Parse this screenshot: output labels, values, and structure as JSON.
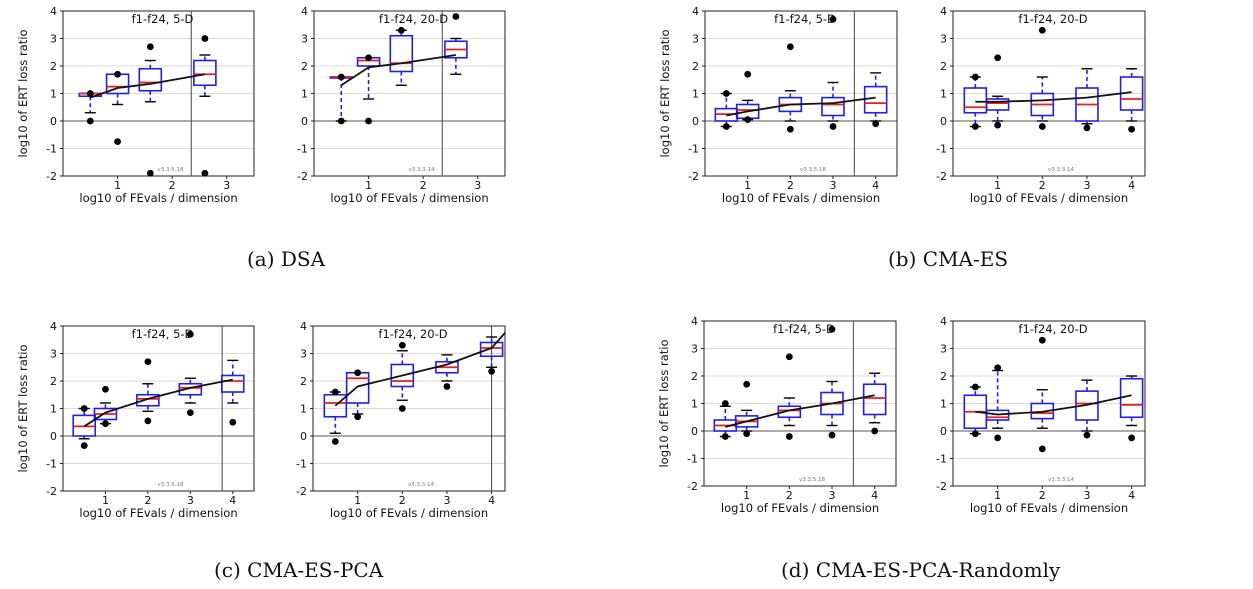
{
  "captions": [
    {
      "label": "(a) DSA"
    },
    {
      "label": "(b) CMA-ES"
    },
    {
      "label": "(c) CMA-ES-PCA"
    },
    {
      "label": "(d) CMA-ES-PCA-Randomly"
    }
  ],
  "colors": {
    "box": "#1f1fe6",
    "median": "#e61f1f",
    "mean_line": "#111111",
    "outlier": "#000000",
    "grid": "#d9d9d9"
  },
  "chart_data": [
    {
      "type": "box",
      "panel": "a",
      "title": "f1-f24, 5-D",
      "xlabel": "log10 of FEvals / dimension",
      "ylabel": "log10 of ERT loss ratio",
      "version": "v3.3.5.18",
      "xlim": [
        0,
        3.5
      ],
      "ylim": [
        -2,
        4
      ],
      "xticks": [
        1,
        2,
        3
      ],
      "yticks": [
        -2,
        -1,
        0,
        1,
        2,
        3,
        4
      ],
      "vline": 2.35,
      "boxes": [
        {
          "x": 0.5,
          "q1": 0.9,
          "median": 1.0,
          "q3": 1.0,
          "wlo": 0.3,
          "whi": 1.0,
          "outliers": [
            0,
            1.0
          ]
        },
        {
          "x": 1.0,
          "q1": 1.0,
          "median": 1.25,
          "q3": 1.7,
          "wlo": 0.6,
          "whi": 1.7,
          "outliers": [
            -0.75,
            1.7
          ]
        },
        {
          "x": 1.6,
          "q1": 1.1,
          "median": 1.4,
          "q3": 1.9,
          "wlo": 0.7,
          "whi": 2.2,
          "outliers": [
            2.7,
            -1.9
          ]
        },
        {
          "x": 2.6,
          "q1": 1.3,
          "median": 1.7,
          "q3": 2.2,
          "wlo": 0.9,
          "whi": 2.4,
          "outliers": [
            3.0,
            -1.9
          ]
        }
      ],
      "mean": {
        "x": [
          0.5,
          1.0,
          1.6,
          2.6
        ],
        "y": [
          0.85,
          1.2,
          1.35,
          1.7
        ]
      }
    },
    {
      "type": "box",
      "panel": "a",
      "title": "f1-f24, 20-D",
      "xlabel": "log10 of FEvals / dimension",
      "ylabel": "",
      "version": "v3.3.3.14",
      "xlim": [
        0,
        3.5
      ],
      "ylim": [
        -2,
        4
      ],
      "xticks": [
        1,
        2,
        3
      ],
      "yticks": [
        -2,
        -1,
        0,
        1,
        2,
        3,
        4
      ],
      "vline": 2.35,
      "boxes": [
        {
          "x": 0.5,
          "q1": 1.6,
          "median": 1.6,
          "q3": 1.6,
          "wlo": 0.0,
          "whi": 1.6,
          "outliers": [
            0,
            1.6
          ]
        },
        {
          "x": 1.0,
          "q1": 2.0,
          "median": 2.2,
          "q3": 2.3,
          "wlo": 0.8,
          "whi": 2.3,
          "outliers": [
            0,
            2.3
          ]
        },
        {
          "x": 1.6,
          "q1": 1.8,
          "median": 2.1,
          "q3": 3.1,
          "wlo": 1.3,
          "whi": 3.3,
          "outliers": [
            3.3
          ]
        },
        {
          "x": 2.6,
          "q1": 2.3,
          "median": 2.6,
          "q3": 2.9,
          "wlo": 1.7,
          "whi": 3.0,
          "outliers": [
            3.8
          ]
        }
      ],
      "mean": {
        "x": [
          0.5,
          1.0,
          1.6,
          2.6
        ],
        "y": [
          1.3,
          1.95,
          2.1,
          2.4
        ]
      }
    },
    {
      "type": "box",
      "panel": "b",
      "title": "f1-f24, 5-D",
      "xlabel": "log10 of FEvals / dimension",
      "ylabel": "log10 of ERT loss ratio",
      "version": "v3.3.5.18",
      "xlim": [
        0,
        4.5
      ],
      "ylim": [
        -2,
        4
      ],
      "xticks": [
        1,
        2,
        3,
        4
      ],
      "yticks": [
        -2,
        -1,
        0,
        1,
        2,
        3,
        4
      ],
      "vline": 3.5,
      "boxes": [
        {
          "x": 0.5,
          "q1": 0.0,
          "median": 0.25,
          "q3": 0.45,
          "wlo": -0.2,
          "whi": 1.0,
          "outliers": [
            1.0,
            -0.2
          ]
        },
        {
          "x": 1.0,
          "q1": 0.1,
          "median": 0.4,
          "q3": 0.6,
          "wlo": 0.05,
          "whi": 0.75,
          "outliers": [
            1.7,
            0.05
          ]
        },
        {
          "x": 2.0,
          "q1": 0.35,
          "median": 0.6,
          "q3": 0.85,
          "wlo": 0.0,
          "whi": 1.1,
          "outliers": [
            2.7,
            -0.3
          ]
        },
        {
          "x": 3.0,
          "q1": 0.2,
          "median": 0.6,
          "q3": 0.85,
          "wlo": 0.0,
          "whi": 1.4,
          "outliers": [
            3.7,
            -0.2
          ]
        },
        {
          "x": 4.0,
          "q1": 0.3,
          "median": 0.65,
          "q3": 1.25,
          "wlo": 0.0,
          "whi": 1.75,
          "outliers": [
            -0.1
          ]
        }
      ],
      "mean": {
        "x": [
          0.5,
          1.0,
          2.0,
          3.0,
          4.0
        ],
        "y": [
          0.2,
          0.35,
          0.6,
          0.65,
          0.85
        ]
      }
    },
    {
      "type": "box",
      "panel": "b",
      "title": "f1-f24, 20-D",
      "xlabel": "log10 of FEvals / dimension",
      "ylabel": "",
      "version": "v3.3.3.14",
      "xlim": [
        0,
        4.3
      ],
      "ylim": [
        -2,
        4
      ],
      "xticks": [
        1,
        2,
        3,
        4
      ],
      "yticks": [
        -2,
        -1,
        0,
        1,
        2,
        3,
        4
      ],
      "vline": 4.3,
      "boxes": [
        {
          "x": 0.5,
          "q1": 0.3,
          "median": 0.5,
          "q3": 1.2,
          "wlo": -0.2,
          "whi": 1.6,
          "outliers": [
            1.6,
            -0.2
          ]
        },
        {
          "x": 1.0,
          "q1": 0.4,
          "median": 0.65,
          "q3": 0.8,
          "wlo": 0.0,
          "whi": 0.9,
          "outliers": [
            2.3,
            -0.15
          ]
        },
        {
          "x": 2.0,
          "q1": 0.2,
          "median": 0.6,
          "q3": 1.0,
          "wlo": 0.0,
          "whi": 1.6,
          "outliers": [
            3.3,
            -0.2
          ]
        },
        {
          "x": 3.0,
          "q1": 0.0,
          "median": 0.6,
          "q3": 1.2,
          "wlo": -0.1,
          "whi": 1.9,
          "outliers": [
            -0.25
          ]
        },
        {
          "x": 4.0,
          "q1": 0.4,
          "median": 0.8,
          "q3": 1.6,
          "wlo": 0.0,
          "whi": 1.9,
          "outliers": [
            -0.3
          ]
        }
      ],
      "mean": {
        "x": [
          0.5,
          1.0,
          2.0,
          3.0,
          4.0
        ],
        "y": [
          0.7,
          0.7,
          0.75,
          0.85,
          1.05
        ]
      }
    },
    {
      "type": "box",
      "panel": "c",
      "title": "f1-f24, 5-D",
      "xlabel": "log10 of FEvals / dimension",
      "ylabel": "log10 of ERT loss ratio",
      "version": "v3.3.5.18",
      "xlim": [
        0,
        4.5
      ],
      "ylim": [
        -2,
        4
      ],
      "xticks": [
        1,
        2,
        3,
        4
      ],
      "yticks": [
        -2,
        -1,
        0,
        1,
        2,
        3,
        4
      ],
      "vline": 3.75,
      "boxes": [
        {
          "x": 0.5,
          "q1": 0.0,
          "median": 0.35,
          "q3": 0.75,
          "wlo": -0.1,
          "whi": 1.0,
          "outliers": [
            1.0,
            -0.35
          ]
        },
        {
          "x": 1.0,
          "q1": 0.6,
          "median": 0.8,
          "q3": 1.0,
          "wlo": 0.45,
          "whi": 1.2,
          "outliers": [
            1.7,
            0.45
          ]
        },
        {
          "x": 2.0,
          "q1": 1.1,
          "median": 1.35,
          "q3": 1.5,
          "wlo": 0.9,
          "whi": 1.9,
          "outliers": [
            2.7,
            0.55
          ]
        },
        {
          "x": 3.0,
          "q1": 1.5,
          "median": 1.75,
          "q3": 1.9,
          "wlo": 1.2,
          "whi": 2.1,
          "outliers": [
            3.7,
            0.85
          ]
        },
        {
          "x": 4.0,
          "q1": 1.6,
          "median": 2.0,
          "q3": 2.2,
          "wlo": 1.2,
          "whi": 2.75,
          "outliers": [
            0.5
          ]
        }
      ],
      "mean": {
        "x": [
          0.5,
          1.0,
          2.0,
          3.0,
          4.0
        ],
        "y": [
          0.35,
          0.85,
          1.35,
          1.75,
          2.05
        ]
      }
    },
    {
      "type": "box",
      "panel": "c",
      "title": "f1-f24, 20-D",
      "xlabel": "log10 of FEvals / dimension",
      "ylabel": "",
      "version": "v3.3.3.14",
      "xlim": [
        0,
        4.3
      ],
      "ylim": [
        -2,
        4
      ],
      "xticks": [
        1,
        2,
        3,
        4
      ],
      "yticks": [
        -2,
        -1,
        0,
        1,
        2,
        3,
        4
      ],
      "vline": 4.0,
      "boxes": [
        {
          "x": 0.5,
          "q1": 0.7,
          "median": 1.2,
          "q3": 1.5,
          "wlo": 0.1,
          "whi": 1.6,
          "outliers": [
            1.6,
            -0.2
          ]
        },
        {
          "x": 1.0,
          "q1": 1.2,
          "median": 2.1,
          "q3": 2.3,
          "wlo": 0.8,
          "whi": 2.3,
          "outliers": [
            2.3,
            0.7
          ]
        },
        {
          "x": 2.0,
          "q1": 1.8,
          "median": 2.0,
          "q3": 2.6,
          "wlo": 1.3,
          "whi": 3.1,
          "outliers": [
            3.3,
            1.0
          ]
        },
        {
          "x": 3.0,
          "q1": 2.3,
          "median": 2.5,
          "q3": 2.7,
          "wlo": 2.0,
          "whi": 2.95,
          "outliers": [
            1.8
          ]
        },
        {
          "x": 4.0,
          "q1": 2.9,
          "median": 3.2,
          "q3": 3.4,
          "wlo": 2.5,
          "whi": 3.6,
          "outliers": [
            2.35
          ]
        }
      ],
      "mean": {
        "x": [
          0.5,
          1.0,
          2.0,
          3.0,
          4.0,
          4.3
        ],
        "y": [
          1.1,
          1.8,
          2.2,
          2.6,
          3.2,
          3.75
        ]
      }
    },
    {
      "type": "box",
      "panel": "d",
      "title": "f1-f24, 5-D",
      "xlabel": "log10 of FEvals / dimension",
      "ylabel": "log10 of ERT loss ratio",
      "version": "v3.3.5.18",
      "xlim": [
        0,
        4.5
      ],
      "ylim": [
        -2,
        4
      ],
      "xticks": [
        1,
        2,
        3,
        4
      ],
      "yticks": [
        -2,
        -1,
        0,
        1,
        2,
        3,
        4
      ],
      "vline": 3.5,
      "boxes": [
        {
          "x": 0.5,
          "q1": 0.0,
          "median": 0.2,
          "q3": 0.4,
          "wlo": -0.2,
          "whi": 0.9,
          "outliers": [
            1.0,
            -0.2
          ]
        },
        {
          "x": 1.0,
          "q1": 0.15,
          "median": 0.35,
          "q3": 0.55,
          "wlo": 0.0,
          "whi": 0.75,
          "outliers": [
            1.7,
            -0.1
          ]
        },
        {
          "x": 2.0,
          "q1": 0.5,
          "median": 0.75,
          "q3": 0.9,
          "wlo": 0.2,
          "whi": 1.2,
          "outliers": [
            2.7,
            -0.2
          ]
        },
        {
          "x": 3.0,
          "q1": 0.6,
          "median": 1.0,
          "q3": 1.4,
          "wlo": 0.2,
          "whi": 1.8,
          "outliers": [
            3.7,
            -0.15
          ]
        },
        {
          "x": 4.0,
          "q1": 0.6,
          "median": 1.2,
          "q3": 1.7,
          "wlo": 0.3,
          "whi": 2.1,
          "outliers": [
            0.0
          ]
        }
      ],
      "mean": {
        "x": [
          0.5,
          1.0,
          2.0,
          3.0,
          4.0
        ],
        "y": [
          0.15,
          0.35,
          0.75,
          1.0,
          1.3
        ]
      }
    },
    {
      "type": "box",
      "panel": "d",
      "title": "f1-f24, 20-D",
      "xlabel": "log10 of FEvals / dimension",
      "ylabel": "",
      "version": "v3.3.3.14",
      "xlim": [
        0,
        4.3
      ],
      "ylim": [
        -2,
        4
      ],
      "xticks": [
        1,
        2,
        3,
        4
      ],
      "yticks": [
        -2,
        -1,
        0,
        1,
        2,
        3,
        4
      ],
      "vline": 4.3,
      "boxes": [
        {
          "x": 0.5,
          "q1": 0.1,
          "median": 0.7,
          "q3": 1.3,
          "wlo": -0.1,
          "whi": 1.6,
          "outliers": [
            1.6,
            -0.1
          ]
        },
        {
          "x": 1.0,
          "q1": 0.4,
          "median": 0.5,
          "q3": 0.75,
          "wlo": 0.1,
          "whi": 2.2,
          "outliers": [
            2.3,
            -0.25
          ]
        },
        {
          "x": 2.0,
          "q1": 0.45,
          "median": 0.65,
          "q3": 1.0,
          "wlo": 0.1,
          "whi": 1.5,
          "outliers": [
            3.3,
            -0.65
          ]
        },
        {
          "x": 3.0,
          "q1": 0.4,
          "median": 1.0,
          "q3": 1.45,
          "wlo": 0.0,
          "whi": 1.85,
          "outliers": [
            -0.15
          ]
        },
        {
          "x": 4.0,
          "q1": 0.5,
          "median": 0.95,
          "q3": 1.9,
          "wlo": 0.2,
          "whi": 2.0,
          "outliers": [
            -0.25
          ]
        }
      ],
      "mean": {
        "x": [
          0.5,
          1.0,
          2.0,
          3.0,
          4.0
        ],
        "y": [
          0.7,
          0.6,
          0.7,
          0.95,
          1.3
        ]
      }
    }
  ]
}
